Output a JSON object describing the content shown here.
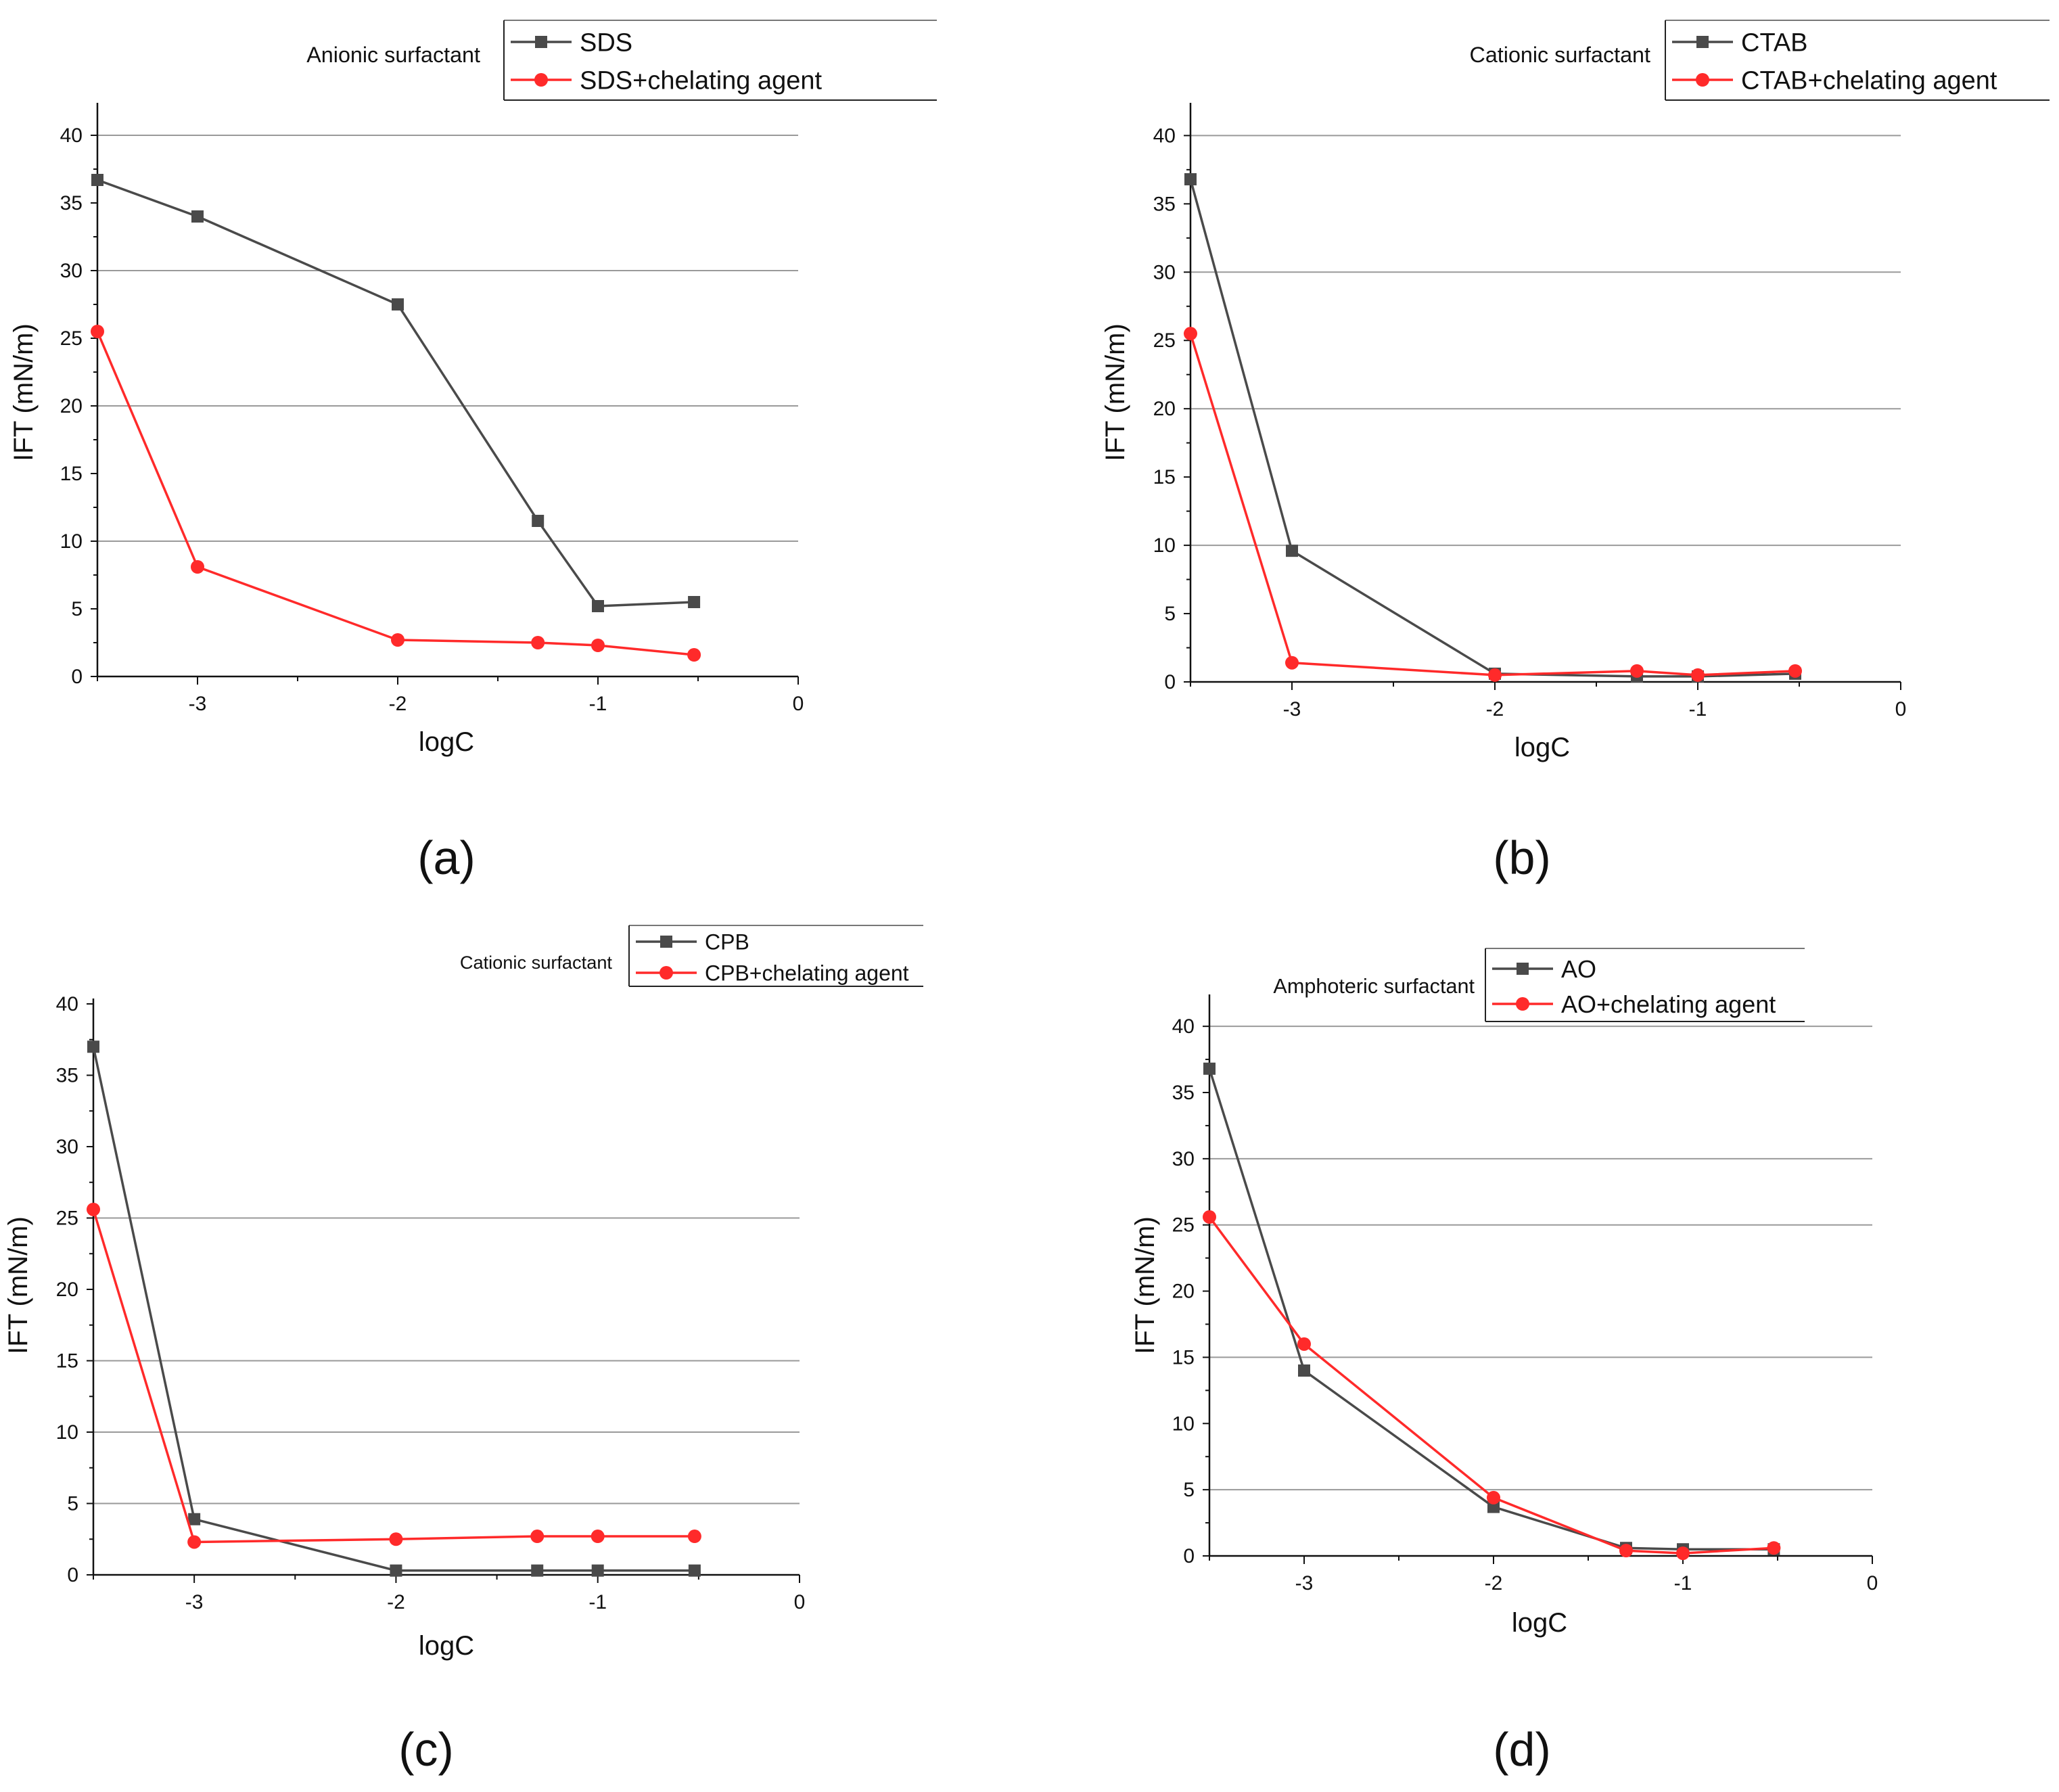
{
  "colors": {
    "series_black": "#4a4a4a",
    "series_red": "#ff2a2a",
    "grid": "#9a9a9a",
    "axis": "#111111",
    "text": "#111111"
  },
  "chart_data": [
    {
      "type": "line",
      "panel_label": "(a)",
      "legend_title": "Anionic surfactant",
      "xlabel": "logC",
      "ylabel": "IFT (mN/m)",
      "xlim": [
        -3.5,
        0
      ],
      "ylim": [
        0,
        42
      ],
      "xticks": [
        -3,
        -2,
        -1,
        0
      ],
      "yticks": [
        0,
        5,
        10,
        15,
        20,
        25,
        30,
        35,
        40
      ],
      "gridlines": [
        10,
        20,
        30,
        40
      ],
      "series": [
        {
          "name": "SDS",
          "color": "#4a4a4a",
          "marker": "square",
          "x": [
            -3.5,
            -3,
            -2,
            -1.3,
            -1,
            -0.52
          ],
          "y": [
            36.7,
            34.0,
            27.5,
            11.5,
            5.2,
            5.5
          ]
        },
        {
          "name": "SDS+chelating agent",
          "color": "#ff2a2a",
          "marker": "circle",
          "x": [
            -3.5,
            -3,
            -2,
            -1.3,
            -1,
            -0.52
          ],
          "y": [
            25.5,
            8.1,
            2.7,
            2.5,
            2.3,
            1.6
          ]
        }
      ]
    },
    {
      "type": "line",
      "panel_label": "(b)",
      "legend_title": "Cationic surfactant",
      "xlabel": "logC",
      "ylabel": "IFT (mN/m)",
      "xlim": [
        -3.5,
        0
      ],
      "ylim": [
        0,
        42
      ],
      "xticks": [
        -3,
        -2,
        -1,
        0
      ],
      "yticks": [
        0,
        5,
        10,
        15,
        20,
        25,
        30,
        35,
        40
      ],
      "gridlines": [
        10,
        20,
        30,
        40
      ],
      "series": [
        {
          "name": "CTAB",
          "color": "#4a4a4a",
          "marker": "square",
          "x": [
            -3.5,
            -3,
            -2,
            -1.3,
            -1,
            -0.52
          ],
          "y": [
            36.8,
            9.6,
            0.6,
            0.4,
            0.4,
            0.6
          ]
        },
        {
          "name": "CTAB+chelating agent",
          "color": "#ff2a2a",
          "marker": "circle",
          "x": [
            -3.5,
            -3,
            -2,
            -1.3,
            -1,
            -0.52
          ],
          "y": [
            25.5,
            1.4,
            0.5,
            0.8,
            0.5,
            0.8
          ]
        }
      ]
    },
    {
      "type": "line",
      "panel_label": "(c)",
      "legend_title": "Cationic surfactant",
      "xlabel": "logC",
      "ylabel": "IFT (mN/m)",
      "xlim": [
        -3.5,
        0
      ],
      "ylim": [
        0,
        40
      ],
      "xticks": [
        -3,
        -2,
        -1,
        0
      ],
      "yticks": [
        0,
        5,
        10,
        15,
        20,
        25,
        30,
        35,
        40
      ],
      "gridlines": [
        5,
        10,
        15,
        25
      ],
      "series": [
        {
          "name": "CPB",
          "color": "#4a4a4a",
          "marker": "square",
          "x": [
            -3.5,
            -3,
            -2,
            -1.3,
            -1,
            -0.52
          ],
          "y": [
            37.0,
            3.9,
            0.3,
            0.3,
            0.3,
            0.3
          ]
        },
        {
          "name": "CPB+chelating agent",
          "color": "#ff2a2a",
          "marker": "circle",
          "x": [
            -3.5,
            -3,
            -2,
            -1.3,
            -1,
            -0.52
          ],
          "y": [
            25.6,
            2.3,
            2.5,
            2.7,
            2.7,
            2.7
          ]
        }
      ]
    },
    {
      "type": "line",
      "panel_label": "(d)",
      "legend_title": "Amphoteric surfactant",
      "xlabel": "logC",
      "ylabel": "IFT (mN/m)",
      "xlim": [
        -3.5,
        0
      ],
      "ylim": [
        0,
        42
      ],
      "xticks": [
        -3,
        -2,
        -1,
        0
      ],
      "yticks": [
        0,
        5,
        10,
        15,
        20,
        25,
        30,
        35,
        40
      ],
      "gridlines": [
        5,
        15,
        25,
        30,
        40
      ],
      "series": [
        {
          "name": "AO",
          "color": "#4a4a4a",
          "marker": "square",
          "x": [
            -3.5,
            -3,
            -2,
            -1.3,
            -1,
            -0.52
          ],
          "y": [
            36.8,
            14.0,
            3.7,
            0.6,
            0.5,
            0.5
          ]
        },
        {
          "name": "AO+chelating agent",
          "color": "#ff2a2a",
          "marker": "circle",
          "x": [
            -3.5,
            -3,
            -2,
            -1.3,
            -1,
            -0.52
          ],
          "y": [
            25.6,
            16.0,
            4.4,
            0.4,
            0.2,
            0.6
          ]
        }
      ]
    }
  ]
}
